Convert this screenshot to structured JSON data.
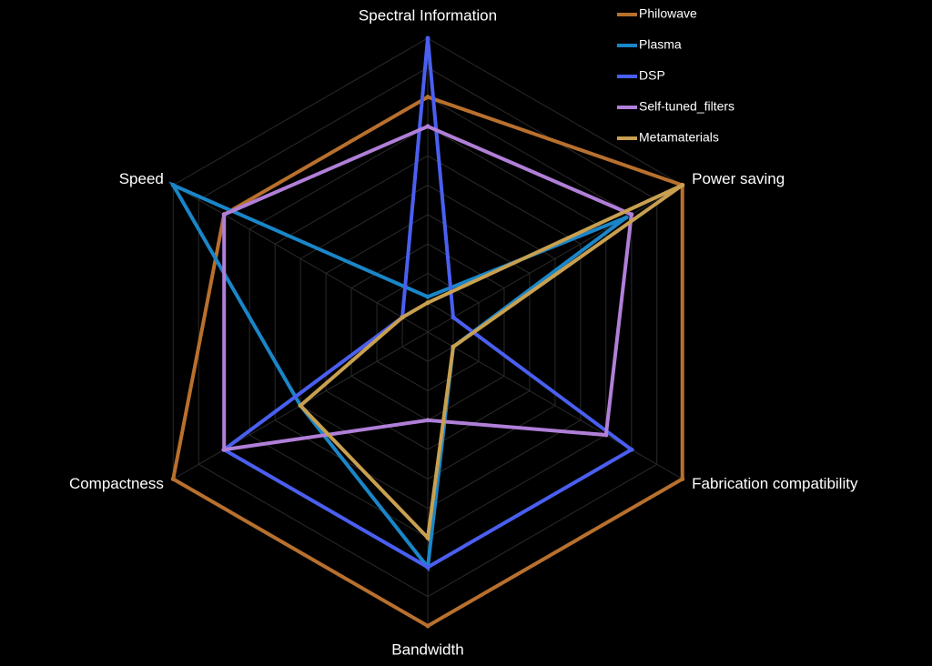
{
  "chart_data": {
    "type": "radar",
    "categories": [
      "Spectral Information",
      "Power saving",
      "Fabrication compatibility",
      "Bandwidth",
      "Compactness",
      "Speed"
    ],
    "rlim": [
      0,
      10
    ],
    "rticks": [
      1,
      2,
      3,
      4,
      5,
      6,
      7,
      8,
      9,
      10
    ],
    "grid": true,
    "legend": "top-right",
    "series": [
      {
        "name": "Philowave",
        "color": "#b8702e",
        "values": [
          8,
          10,
          10,
          10,
          10,
          8
        ]
      },
      {
        "name": "Plasma",
        "color": "#1a86c8",
        "values": [
          1.2,
          7.8,
          1,
          8,
          5,
          10
        ]
      },
      {
        "name": "DSP",
        "color": "#4a5ff0",
        "values": [
          10,
          1,
          8,
          8,
          8,
          1
        ]
      },
      {
        "name": "Self-tuned_filters",
        "color": "#b07fd8",
        "values": [
          7,
          8,
          7,
          3,
          8,
          8
        ]
      },
      {
        "name": "Metamaterials",
        "color": "#c8a050",
        "values": [
          1,
          10,
          1,
          7,
          5,
          1
        ]
      }
    ]
  }
}
